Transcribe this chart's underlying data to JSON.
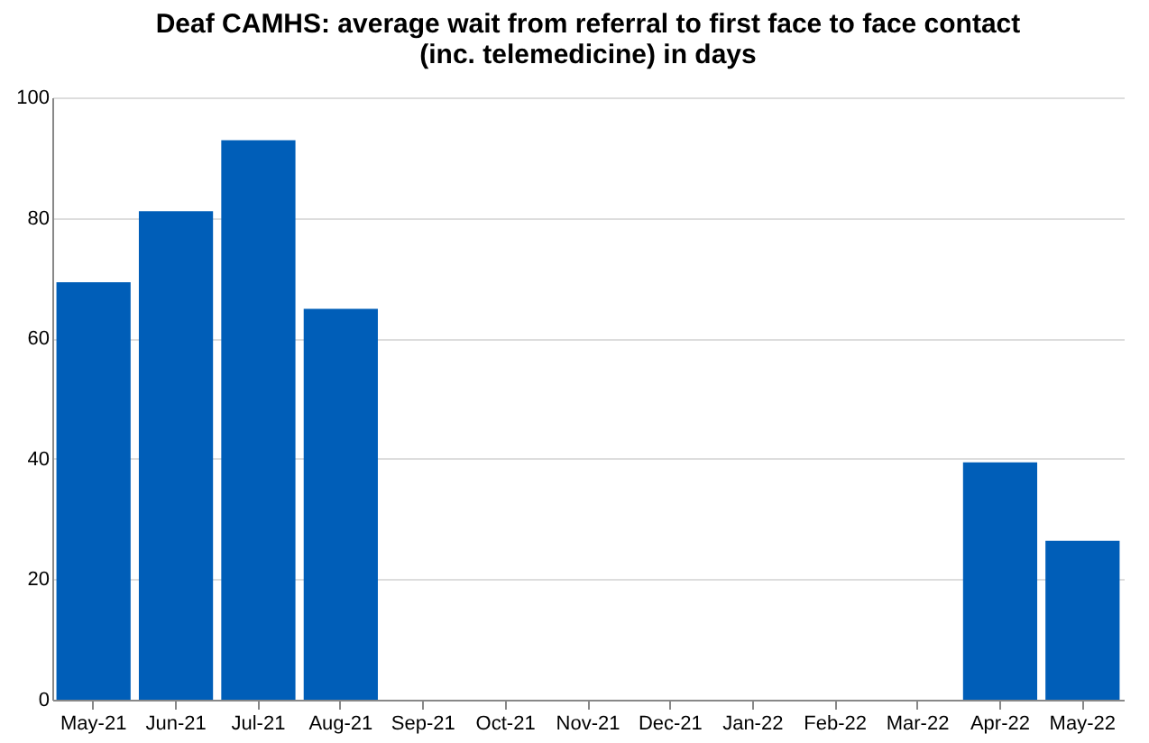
{
  "chart_data": {
    "type": "bar",
    "title": "Deaf CAMHS: average wait from referral to first face to face contact (inc. telemedicine) in days",
    "categories": [
      "May-21",
      "Jun-21",
      "Jul-21",
      "Aug-21",
      "Sep-21",
      "Oct-21",
      "Nov-21",
      "Dec-21",
      "Jan-22",
      "Feb-22",
      "Mar-22",
      "Apr-22",
      "May-22"
    ],
    "values": [
      69.3,
      81.1,
      92.9,
      64.9,
      null,
      null,
      null,
      null,
      null,
      null,
      null,
      39.4,
      26.4
    ],
    "color": "#005eb8",
    "ylim": [
      0,
      100
    ],
    "yticks": [
      0,
      20,
      40,
      60,
      80,
      100
    ],
    "grid": "y"
  }
}
